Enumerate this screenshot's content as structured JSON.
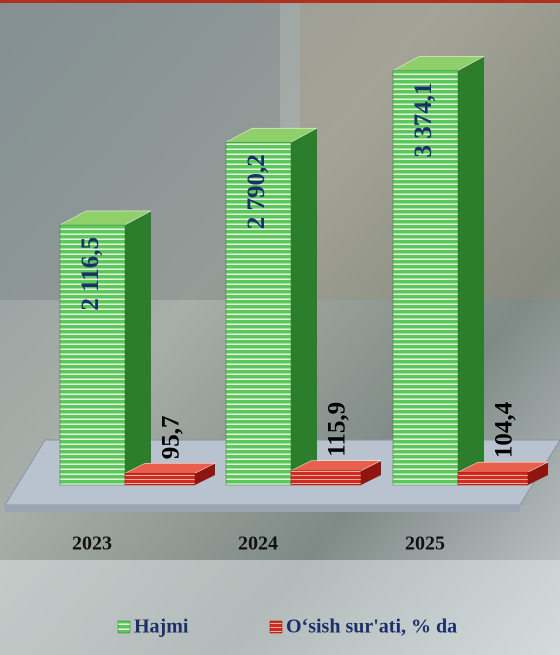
{
  "chart_data": {
    "type": "bar3d",
    "categories": [
      "2023",
      "2024",
      "2025"
    ],
    "series": [
      {
        "name": "Hajmi",
        "color": "#3aa23a",
        "values": [
          2116.5,
          2790.2,
          3374.1
        ],
        "value_labels": [
          "2 116,5",
          "2 790,2",
          "3 374,1"
        ]
      },
      {
        "name": "O‘sish sur'ati, % da",
        "color": "#c8201a",
        "values": [
          95.7,
          115.9,
          104.4
        ],
        "value_labels": [
          "95,7",
          "115,9",
          "104,4"
        ]
      }
    ],
    "ylim": [
      0,
      3500
    ]
  }
}
